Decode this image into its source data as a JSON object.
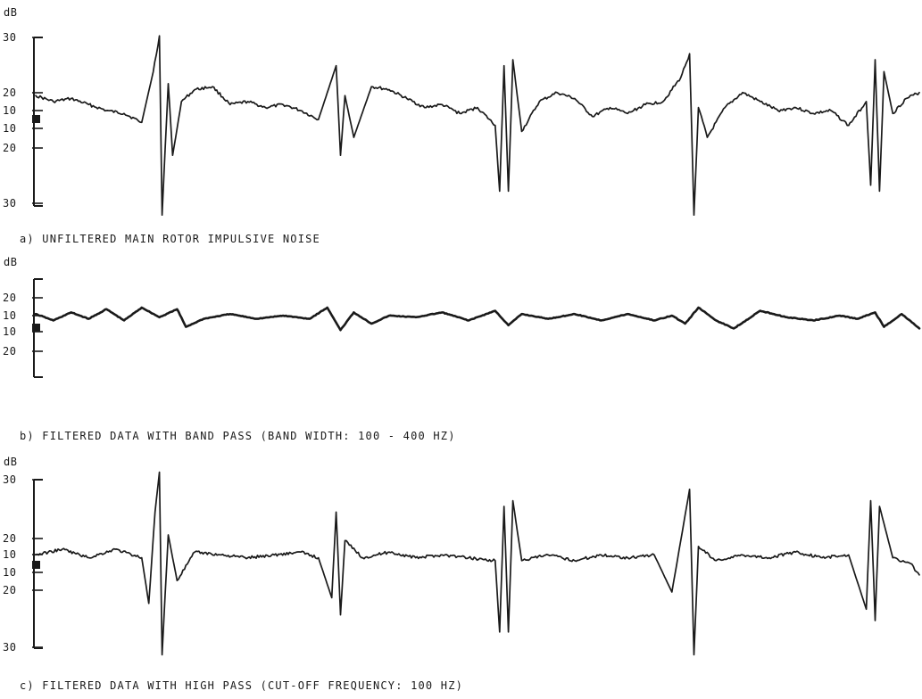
{
  "chart_data": [
    {
      "type": "line",
      "ylabel": "dB",
      "yticks": [
        "30",
        "20",
        "10",
        "10",
        "20",
        "30"
      ],
      "caption": "a) UNFILTERED MAIN ROTOR IMPULSIVE NOISE",
      "legend": "none",
      "grid": false,
      "series": [
        {
          "points": [
            {
              "x": 0.0,
              "y": 8
            },
            {
              "x": 0.02,
              "y": 6
            },
            {
              "x": 0.04,
              "y": 7
            },
            {
              "x": 0.06,
              "y": 5
            },
            {
              "x": 0.08,
              "y": 3
            },
            {
              "x": 0.1,
              "y": 2
            },
            {
              "x": 0.12,
              "y": -1
            },
            {
              "x": 0.133,
              "y": 16
            },
            {
              "x": 0.14,
              "y": 28
            },
            {
              "x": 0.143,
              "y": -32
            },
            {
              "x": 0.15,
              "y": 12
            },
            {
              "x": 0.155,
              "y": -12
            },
            {
              "x": 0.165,
              "y": 6
            },
            {
              "x": 0.18,
              "y": 10
            },
            {
              "x": 0.2,
              "y": 11
            },
            {
              "x": 0.22,
              "y": 5
            },
            {
              "x": 0.24,
              "y": 6
            },
            {
              "x": 0.26,
              "y": 4
            },
            {
              "x": 0.28,
              "y": 5
            },
            {
              "x": 0.3,
              "y": 3
            },
            {
              "x": 0.32,
              "y": 0
            },
            {
              "x": 0.34,
              "y": 18
            },
            {
              "x": 0.345,
              "y": -12
            },
            {
              "x": 0.35,
              "y": 8
            },
            {
              "x": 0.36,
              "y": -6
            },
            {
              "x": 0.38,
              "y": 11
            },
            {
              "x": 0.4,
              "y": 10
            },
            {
              "x": 0.42,
              "y": 7
            },
            {
              "x": 0.44,
              "y": 4
            },
            {
              "x": 0.46,
              "y": 5
            },
            {
              "x": 0.48,
              "y": 2
            },
            {
              "x": 0.5,
              "y": 4
            },
            {
              "x": 0.52,
              "y": -2
            },
            {
              "x": 0.525,
              "y": -24
            },
            {
              "x": 0.53,
              "y": 18
            },
            {
              "x": 0.535,
              "y": -24
            },
            {
              "x": 0.54,
              "y": 20
            },
            {
              "x": 0.55,
              "y": -4
            },
            {
              "x": 0.57,
              "y": 6
            },
            {
              "x": 0.59,
              "y": 9
            },
            {
              "x": 0.61,
              "y": 7
            },
            {
              "x": 0.63,
              "y": 1
            },
            {
              "x": 0.65,
              "y": 4
            },
            {
              "x": 0.67,
              "y": 2
            },
            {
              "x": 0.69,
              "y": 5
            },
            {
              "x": 0.71,
              "y": 6
            },
            {
              "x": 0.73,
              "y": 14
            },
            {
              "x": 0.74,
              "y": 22
            },
            {
              "x": 0.745,
              "y": -32
            },
            {
              "x": 0.75,
              "y": 4
            },
            {
              "x": 0.76,
              "y": -6
            },
            {
              "x": 0.78,
              "y": 4
            },
            {
              "x": 0.8,
              "y": 9
            },
            {
              "x": 0.82,
              "y": 6
            },
            {
              "x": 0.84,
              "y": 3
            },
            {
              "x": 0.86,
              "y": 4
            },
            {
              "x": 0.88,
              "y": 2
            },
            {
              "x": 0.9,
              "y": 3
            },
            {
              "x": 0.92,
              "y": -2
            },
            {
              "x": 0.94,
              "y": 6
            },
            {
              "x": 0.945,
              "y": -22
            },
            {
              "x": 0.95,
              "y": 20
            },
            {
              "x": 0.955,
              "y": -24
            },
            {
              "x": 0.96,
              "y": 16
            },
            {
              "x": 0.97,
              "y": 2
            },
            {
              "x": 0.985,
              "y": 7
            },
            {
              "x": 1.0,
              "y": 9
            }
          ]
        }
      ]
    },
    {
      "type": "line",
      "ylabel": "dB",
      "yticks": [
        "20",
        "10",
        "10",
        "20"
      ],
      "caption": "b) FILTERED DATA WITH BAND PASS (BAND WIDTH: 100 - 400 HZ)",
      "legend": "none",
      "grid": false,
      "series": [
        {
          "points": [
            {
              "x": 0.0,
              "y": 6
            },
            {
              "x": 0.02,
              "y": 2
            },
            {
              "x": 0.04,
              "y": 7
            },
            {
              "x": 0.06,
              "y": 3
            },
            {
              "x": 0.08,
              "y": 9
            },
            {
              "x": 0.1,
              "y": 2
            },
            {
              "x": 0.12,
              "y": 10
            },
            {
              "x": 0.14,
              "y": 4
            },
            {
              "x": 0.16,
              "y": 9
            },
            {
              "x": 0.17,
              "y": -2
            },
            {
              "x": 0.19,
              "y": 3
            },
            {
              "x": 0.22,
              "y": 6
            },
            {
              "x": 0.25,
              "y": 3
            },
            {
              "x": 0.28,
              "y": 5
            },
            {
              "x": 0.31,
              "y": 3
            },
            {
              "x": 0.33,
              "y": 10
            },
            {
              "x": 0.345,
              "y": -4
            },
            {
              "x": 0.36,
              "y": 7
            },
            {
              "x": 0.38,
              "y": 0
            },
            {
              "x": 0.4,
              "y": 5
            },
            {
              "x": 0.43,
              "y": 4
            },
            {
              "x": 0.46,
              "y": 7
            },
            {
              "x": 0.49,
              "y": 2
            },
            {
              "x": 0.52,
              "y": 8
            },
            {
              "x": 0.535,
              "y": -1
            },
            {
              "x": 0.55,
              "y": 6
            },
            {
              "x": 0.58,
              "y": 3
            },
            {
              "x": 0.61,
              "y": 6
            },
            {
              "x": 0.64,
              "y": 2
            },
            {
              "x": 0.67,
              "y": 6
            },
            {
              "x": 0.7,
              "y": 2
            },
            {
              "x": 0.72,
              "y": 5
            },
            {
              "x": 0.735,
              "y": 0
            },
            {
              "x": 0.75,
              "y": 10
            },
            {
              "x": 0.77,
              "y": 2
            },
            {
              "x": 0.79,
              "y": -3
            },
            {
              "x": 0.82,
              "y": 8
            },
            {
              "x": 0.85,
              "y": 4
            },
            {
              "x": 0.88,
              "y": 2
            },
            {
              "x": 0.91,
              "y": 5
            },
            {
              "x": 0.93,
              "y": 3
            },
            {
              "x": 0.95,
              "y": 7
            },
            {
              "x": 0.96,
              "y": -2
            },
            {
              "x": 0.98,
              "y": 6
            },
            {
              "x": 1.0,
              "y": -3
            }
          ]
        }
      ]
    },
    {
      "type": "line",
      "ylabel": "dB",
      "yticks": [
        "30",
        "20",
        "10",
        "10",
        "20",
        "30"
      ],
      "caption": "c) FILTERED DATA WITH HIGH PASS (CUT-OFF FREQUENCY: 100 HZ)",
      "legend": "none",
      "grid": false,
      "series": [
        {
          "points": [
            {
              "x": 0.0,
              "y": 3
            },
            {
              "x": 0.03,
              "y": 5
            },
            {
              "x": 0.06,
              "y": 2
            },
            {
              "x": 0.09,
              "y": 5
            },
            {
              "x": 0.12,
              "y": 2
            },
            {
              "x": 0.128,
              "y": -14
            },
            {
              "x": 0.135,
              "y": 18
            },
            {
              "x": 0.14,
              "y": 32
            },
            {
              "x": 0.143,
              "y": -32
            },
            {
              "x": 0.15,
              "y": 10
            },
            {
              "x": 0.16,
              "y": -6
            },
            {
              "x": 0.18,
              "y": 4
            },
            {
              "x": 0.21,
              "y": 3
            },
            {
              "x": 0.24,
              "y": 2
            },
            {
              "x": 0.27,
              "y": 3
            },
            {
              "x": 0.3,
              "y": 4
            },
            {
              "x": 0.32,
              "y": 2
            },
            {
              "x": 0.335,
              "y": -12
            },
            {
              "x": 0.34,
              "y": 18
            },
            {
              "x": 0.345,
              "y": -18
            },
            {
              "x": 0.35,
              "y": 8
            },
            {
              "x": 0.37,
              "y": 2
            },
            {
              "x": 0.4,
              "y": 4
            },
            {
              "x": 0.43,
              "y": 2
            },
            {
              "x": 0.46,
              "y": 3
            },
            {
              "x": 0.49,
              "y": 2
            },
            {
              "x": 0.52,
              "y": 1
            },
            {
              "x": 0.525,
              "y": -24
            },
            {
              "x": 0.53,
              "y": 20
            },
            {
              "x": 0.535,
              "y": -24
            },
            {
              "x": 0.54,
              "y": 22
            },
            {
              "x": 0.55,
              "y": 1
            },
            {
              "x": 0.58,
              "y": 3
            },
            {
              "x": 0.61,
              "y": 1
            },
            {
              "x": 0.64,
              "y": 3
            },
            {
              "x": 0.67,
              "y": 2
            },
            {
              "x": 0.7,
              "y": 3
            },
            {
              "x": 0.72,
              "y": -10
            },
            {
              "x": 0.74,
              "y": 26
            },
            {
              "x": 0.745,
              "y": -32
            },
            {
              "x": 0.75,
              "y": 6
            },
            {
              "x": 0.77,
              "y": 1
            },
            {
              "x": 0.8,
              "y": 3
            },
            {
              "x": 0.83,
              "y": 2
            },
            {
              "x": 0.86,
              "y": 4
            },
            {
              "x": 0.89,
              "y": 2
            },
            {
              "x": 0.92,
              "y": 3
            },
            {
              "x": 0.94,
              "y": -16
            },
            {
              "x": 0.945,
              "y": 22
            },
            {
              "x": 0.95,
              "y": -20
            },
            {
              "x": 0.955,
              "y": 20
            },
            {
              "x": 0.97,
              "y": 2
            },
            {
              "x": 0.99,
              "y": 0
            },
            {
              "x": 1.0,
              "y": -4
            }
          ]
        }
      ]
    }
  ]
}
